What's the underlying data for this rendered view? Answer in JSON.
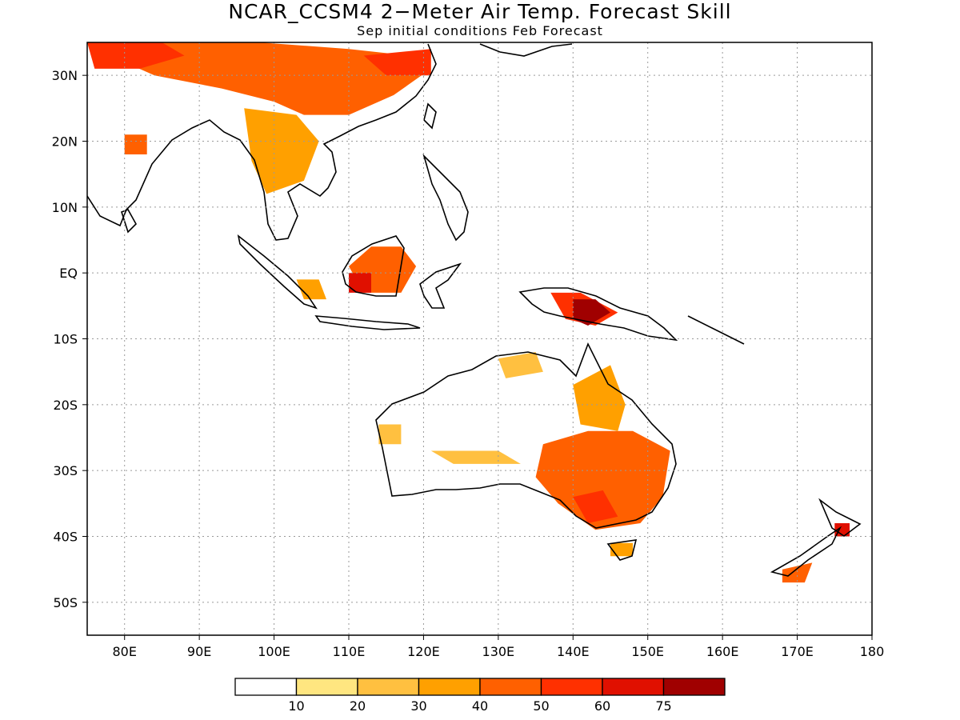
{
  "title": "NCAR_CCSM4 2−Meter Air Temp. Forecast Skill",
  "subtitle": "Sep initial conditions  Feb Forecast",
  "map": {
    "lon_range": [
      75,
      180
    ],
    "lat_range": [
      -55,
      35
    ],
    "grid": "dotted",
    "lat_ticks": [
      {
        "value": 30,
        "label": "30N"
      },
      {
        "value": 20,
        "label": "20N"
      },
      {
        "value": 10,
        "label": "10N"
      },
      {
        "value": 0,
        "label": "EQ"
      },
      {
        "value": -10,
        "label": "10S"
      },
      {
        "value": -20,
        "label": "20S"
      },
      {
        "value": -30,
        "label": "30S"
      },
      {
        "value": -40,
        "label": "40S"
      },
      {
        "value": -50,
        "label": "50S"
      }
    ],
    "lon_ticks": [
      {
        "value": 80,
        "label": "80E"
      },
      {
        "value": 90,
        "label": "90E"
      },
      {
        "value": 100,
        "label": "100E"
      },
      {
        "value": 110,
        "label": "110E"
      },
      {
        "value": 120,
        "label": "120E"
      },
      {
        "value": 130,
        "label": "130E"
      },
      {
        "value": 140,
        "label": "140E"
      },
      {
        "value": 150,
        "label": "150E"
      },
      {
        "value": 160,
        "label": "160E"
      },
      {
        "value": 170,
        "label": "170E"
      },
      {
        "value": 180,
        "label": "180"
      }
    ]
  },
  "colorbar": {
    "colors": [
      "#ffffff",
      "#ffe680",
      "#ffc040",
      "#ffa000",
      "#ff6000",
      "#ff3000",
      "#e01000",
      "#a00000"
    ],
    "labels": [
      "10",
      "20",
      "30",
      "40",
      "50",
      "60",
      "75"
    ]
  },
  "skill_regions": [
    {
      "name": "tibet-china",
      "level": 4,
      "points": [
        [
          76,
          35
        ],
        [
          98,
          35
        ],
        [
          110,
          34
        ],
        [
          118,
          33
        ],
        [
          121,
          31
        ],
        [
          116,
          27
        ],
        [
          110,
          24
        ],
        [
          104,
          24
        ],
        [
          100,
          26
        ],
        [
          93,
          28
        ],
        [
          84,
          30
        ],
        [
          78,
          33
        ]
      ]
    },
    {
      "name": "himalaya-west",
      "level": 5,
      "points": [
        [
          75,
          35
        ],
        [
          85,
          35
        ],
        [
          88,
          33
        ],
        [
          82,
          31
        ],
        [
          76,
          31
        ]
      ]
    },
    {
      "name": "china-east-high",
      "level": 5,
      "points": [
        [
          112,
          33
        ],
        [
          121,
          34
        ],
        [
          121,
          30
        ],
        [
          115,
          30
        ]
      ]
    },
    {
      "name": "indochina",
      "level": 3,
      "points": [
        [
          96,
          25
        ],
        [
          103,
          24
        ],
        [
          106,
          20
        ],
        [
          104,
          14
        ],
        [
          99,
          12
        ],
        [
          97,
          17
        ]
      ]
    },
    {
      "name": "india-east",
      "level": 4,
      "points": [
        [
          80,
          21
        ],
        [
          83,
          21
        ],
        [
          83,
          18
        ],
        [
          80,
          18
        ]
      ]
    },
    {
      "name": "borneo",
      "level": 4,
      "points": [
        [
          110,
          1
        ],
        [
          113,
          4
        ],
        [
          117,
          4
        ],
        [
          119,
          1
        ],
        [
          117,
          -3
        ],
        [
          112,
          -3
        ]
      ]
    },
    {
      "name": "borneo-high",
      "level": 6,
      "points": [
        [
          110,
          0
        ],
        [
          113,
          0
        ],
        [
          113,
          -3
        ],
        [
          110,
          -3
        ]
      ]
    },
    {
      "name": "sumatra",
      "level": 3,
      "points": [
        [
          103,
          -1
        ],
        [
          106,
          -1
        ],
        [
          107,
          -4
        ],
        [
          104,
          -4
        ]
      ]
    },
    {
      "name": "new-guinea",
      "level": 5,
      "points": [
        [
          137,
          -3
        ],
        [
          141,
          -3
        ],
        [
          146,
          -6
        ],
        [
          143,
          -8
        ],
        [
          139,
          -7
        ]
      ]
    },
    {
      "name": "new-guinea-high",
      "level": 7,
      "points": [
        [
          140,
          -4
        ],
        [
          143,
          -4
        ],
        [
          145,
          -6
        ],
        [
          142,
          -8
        ],
        [
          140,
          -7
        ]
      ]
    },
    {
      "name": "aus-north",
      "level": 2,
      "points": [
        [
          130,
          -13
        ],
        [
          135,
          -12
        ],
        [
          136,
          -15
        ],
        [
          131,
          -16
        ]
      ]
    },
    {
      "name": "aus-northeast",
      "level": 3,
      "points": [
        [
          140,
          -17
        ],
        [
          145,
          -14
        ],
        [
          147,
          -20
        ],
        [
          146,
          -24
        ],
        [
          141,
          -23
        ]
      ]
    },
    {
      "name": "aus-west",
      "level": 2,
      "points": [
        [
          114,
          -23
        ],
        [
          117,
          -23
        ],
        [
          117,
          -26
        ],
        [
          114,
          -26
        ]
      ]
    },
    {
      "name": "aus-central-band",
      "level": 2,
      "points": [
        [
          121,
          -27
        ],
        [
          130,
          -27
        ],
        [
          133,
          -29
        ],
        [
          124,
          -29
        ]
      ]
    },
    {
      "name": "aus-southeast",
      "level": 4,
      "points": [
        [
          136,
          -26
        ],
        [
          142,
          -24
        ],
        [
          148,
          -24
        ],
        [
          153,
          -27
        ],
        [
          152,
          -34
        ],
        [
          149,
          -38
        ],
        [
          143,
          -39
        ],
        [
          138,
          -35
        ],
        [
          135,
          -31
        ]
      ]
    },
    {
      "name": "aus-southeast-high",
      "level": 5,
      "points": [
        [
          140,
          -34
        ],
        [
          144,
          -33
        ],
        [
          146,
          -37
        ],
        [
          142,
          -38
        ]
      ]
    },
    {
      "name": "tasmania",
      "level": 3,
      "points": [
        [
          145,
          -41
        ],
        [
          148,
          -41
        ],
        [
          148,
          -43
        ],
        [
          145,
          -43
        ]
      ]
    },
    {
      "name": "nz-south",
      "level": 4,
      "points": [
        [
          168,
          -45
        ],
        [
          172,
          -44
        ],
        [
          171,
          -47
        ],
        [
          168,
          -47
        ]
      ]
    },
    {
      "name": "nz-north",
      "level": 6,
      "points": [
        [
          175,
          -38
        ],
        [
          177,
          -38
        ],
        [
          177,
          -40
        ],
        [
          175,
          -40
        ]
      ]
    }
  ]
}
